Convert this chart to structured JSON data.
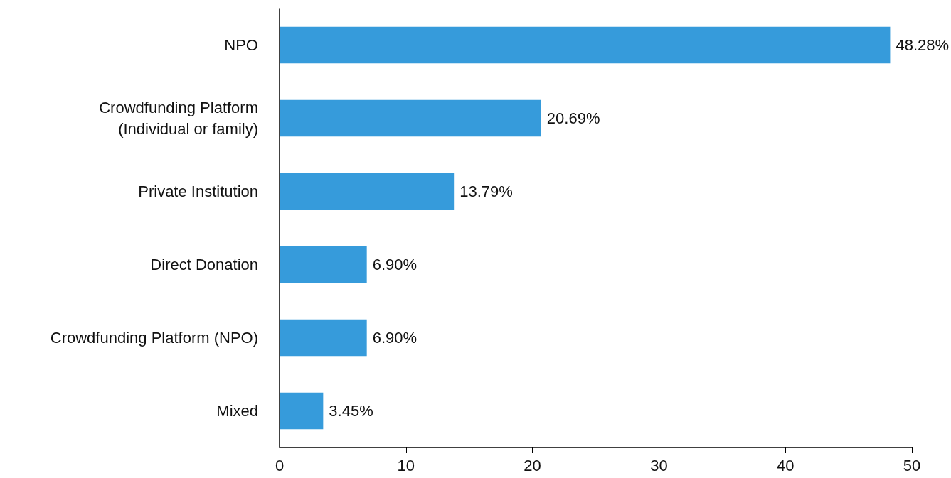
{
  "chart_data": {
    "type": "bar",
    "orientation": "horizontal",
    "categories": [
      "NPO",
      "Crowdfunding Platform\n(Individual or family)",
      "Private Institution",
      "Direct Donation",
      "Crowdfunding Platform (NPO)",
      "Mixed"
    ],
    "values": [
      48.28,
      20.69,
      13.79,
      6.9,
      6.9,
      3.45
    ],
    "value_labels": [
      "48.28%",
      "20.69%",
      "13.79%",
      "6.90%",
      "6.90%",
      "3.45%"
    ],
    "color": "#369bdb",
    "xlim": [
      0,
      50
    ],
    "xticks": [
      0,
      10,
      20,
      30,
      40,
      50
    ]
  }
}
